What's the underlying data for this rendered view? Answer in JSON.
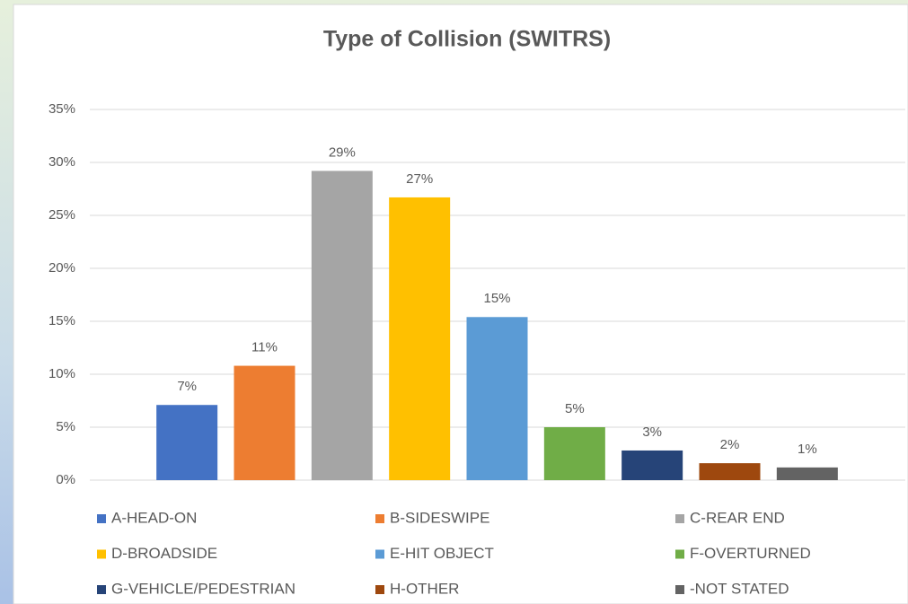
{
  "chart_data": {
    "type": "bar",
    "title": "Type of Collision (SWITRS)",
    "categories": [
      "A-HEAD-ON",
      "B-SIDESWIPE",
      "C-REAR END",
      "D-BROADSIDE",
      "E-HIT OBJECT",
      "F-OVERTURNED",
      "G-VEHICLE/PEDESTRIAN",
      "H-OTHER",
      "-NOT STATED"
    ],
    "values": [
      7.1,
      10.8,
      29.2,
      26.7,
      15.4,
      5.0,
      2.8,
      1.6,
      1.2
    ],
    "value_labels": [
      "7%",
      "11%",
      "29%",
      "27%",
      "15%",
      "5%",
      "3%",
      "2%",
      "1%"
    ],
    "colors": [
      "#4472c4",
      "#ed7d31",
      "#a5a5a5",
      "#ffc000",
      "#5b9bd5",
      "#70ad47",
      "#264478",
      "#9e480e",
      "#636363"
    ],
    "ylim": [
      0,
      35
    ],
    "yticks": [
      {
        "value": 0,
        "label": "0%"
      },
      {
        "value": 5,
        "label": "5%"
      },
      {
        "value": 10,
        "label": "10%"
      },
      {
        "value": 15,
        "label": "15%"
      },
      {
        "value": 20,
        "label": "20%"
      },
      {
        "value": 25,
        "label": "25%"
      },
      {
        "value": 30,
        "label": "30%"
      },
      {
        "value": 35,
        "label": "35%"
      }
    ],
    "grid": true,
    "legend": "bottom"
  }
}
